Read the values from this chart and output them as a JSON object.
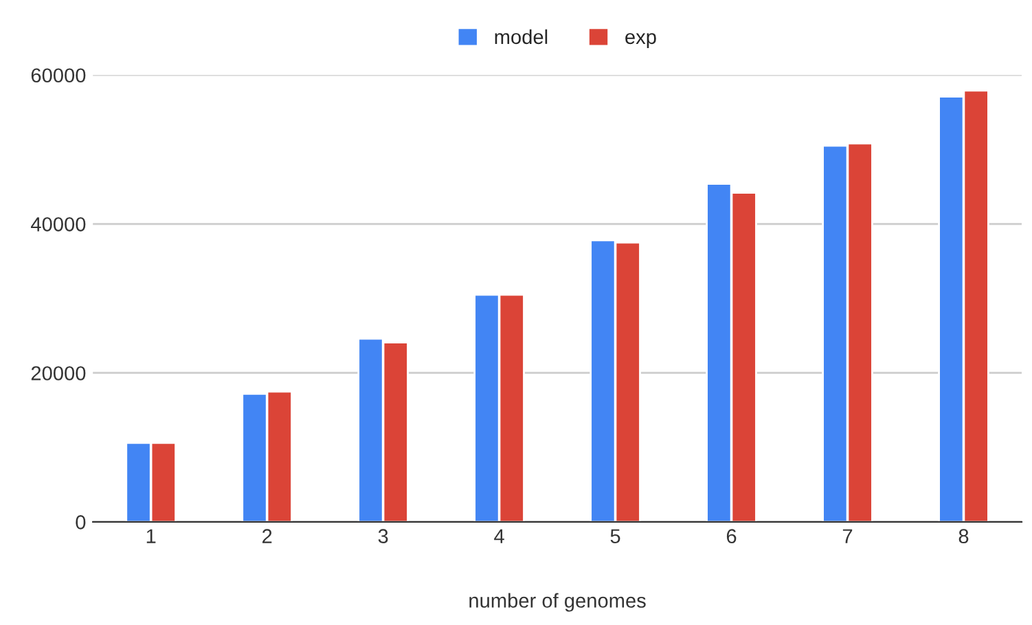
{
  "chart_data": {
    "type": "bar",
    "xlabel": "number of genomes",
    "categories": [
      "1",
      "2",
      "3",
      "4",
      "5",
      "6",
      "7",
      "8"
    ],
    "series": [
      {
        "name": "model",
        "color": "#4285f4",
        "values": [
          10600,
          17200,
          24600,
          30500,
          37800,
          45400,
          50500,
          57100
        ]
      },
      {
        "name": "exp",
        "color": "#db4437",
        "values": [
          10600,
          17500,
          24100,
          30500,
          37500,
          44200,
          50800,
          57900
        ]
      }
    ],
    "ylim": [
      0,
      60000
    ],
    "yticks": [
      0,
      20000,
      40000,
      60000
    ],
    "grid": "y",
    "legend": "top"
  }
}
